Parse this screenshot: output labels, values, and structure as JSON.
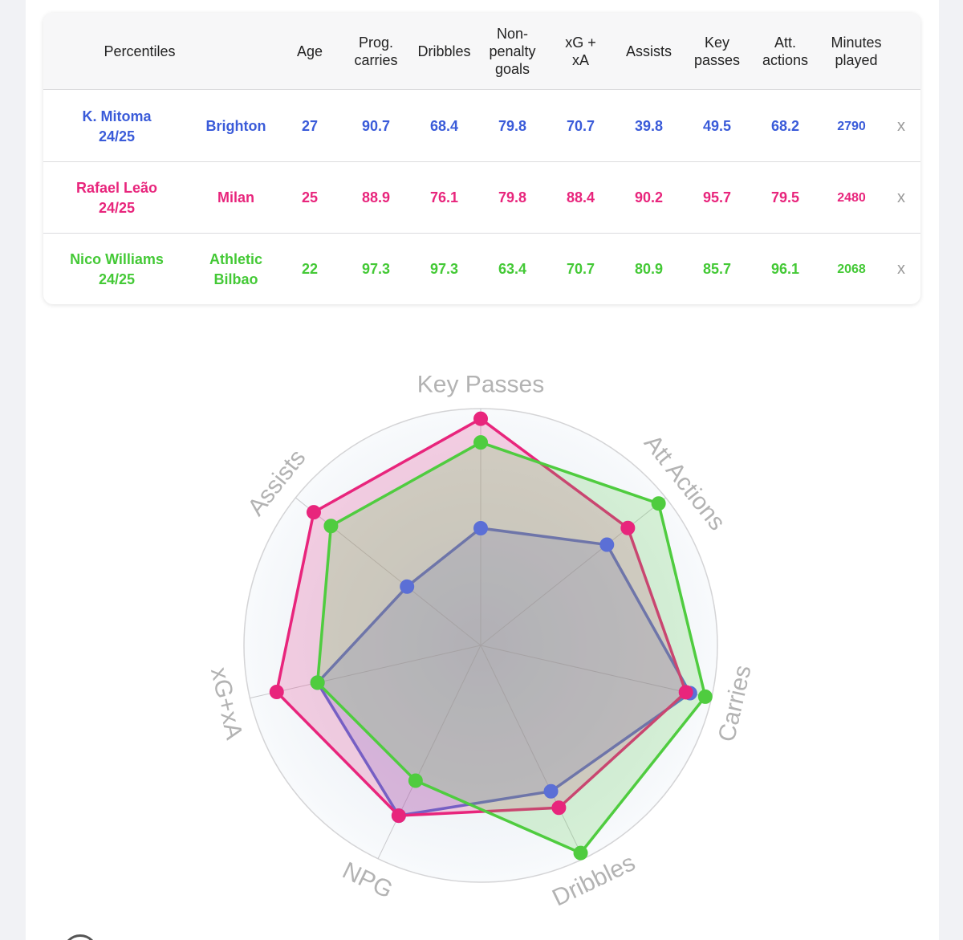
{
  "table": {
    "headers": {
      "percentiles": "Percentiles",
      "age": "Age",
      "prog_carries": "Prog.\ncarries",
      "dribbles": "Dribbles",
      "npg": "Non-\npenalty\ngoals",
      "xgxa": "xG +\nxA",
      "assists": "Assists",
      "key_passes": "Key\npasses",
      "att_actions": "Att.\nactions",
      "minutes": "Minutes\nplayed"
    },
    "rows": [
      {
        "name": "K. Mitoma\n24/25",
        "team": "Brighton",
        "age": "27",
        "prog_carries": "90.7",
        "dribbles": "68.4",
        "npg": "79.8",
        "xgxa": "70.7",
        "assists": "39.8",
        "key_passes": "49.5",
        "att_actions": "68.2",
        "minutes": "2790",
        "remove": "x",
        "color": "#3a5bd9"
      },
      {
        "name": "Rafael Leão\n24/25",
        "team": "Milan",
        "age": "25",
        "prog_carries": "88.9",
        "dribbles": "76.1",
        "npg": "79.8",
        "xgxa": "88.4",
        "assists": "90.2",
        "key_passes": "95.7",
        "att_actions": "79.5",
        "minutes": "2480",
        "remove": "x",
        "color": "#e8257c"
      },
      {
        "name": "Nico Williams\n24/25",
        "team": "Athletic\nBilbao",
        "age": "22",
        "prog_carries": "97.3",
        "dribbles": "97.3",
        "npg": "63.4",
        "xgxa": "70.7",
        "assists": "80.9",
        "key_passes": "85.7",
        "att_actions": "96.1",
        "minutes": "2068",
        "remove": "x",
        "color": "#44c936"
      }
    ]
  },
  "chart_data": {
    "type": "radar",
    "axes": [
      "Key Passes",
      "Att Actions",
      "Carries",
      "Dribbles",
      "NPG",
      "xG+xA",
      "Assists"
    ],
    "range": [
      0,
      100
    ],
    "series": [
      {
        "name": "K. Mitoma",
        "color": "#5b6fd6",
        "values": [
          49.5,
          68.2,
          90.7,
          68.4,
          79.8,
          70.7,
          39.8
        ]
      },
      {
        "name": "Rafael Leão",
        "color": "#e8257c",
        "values": [
          95.7,
          79.5,
          88.9,
          76.1,
          79.8,
          88.4,
          90.2
        ]
      },
      {
        "name": "Nico Williams",
        "color": "#4fcc3f",
        "values": [
          85.7,
          96.1,
          97.3,
          97.3,
          63.4,
          70.7,
          80.9
        ]
      }
    ]
  }
}
